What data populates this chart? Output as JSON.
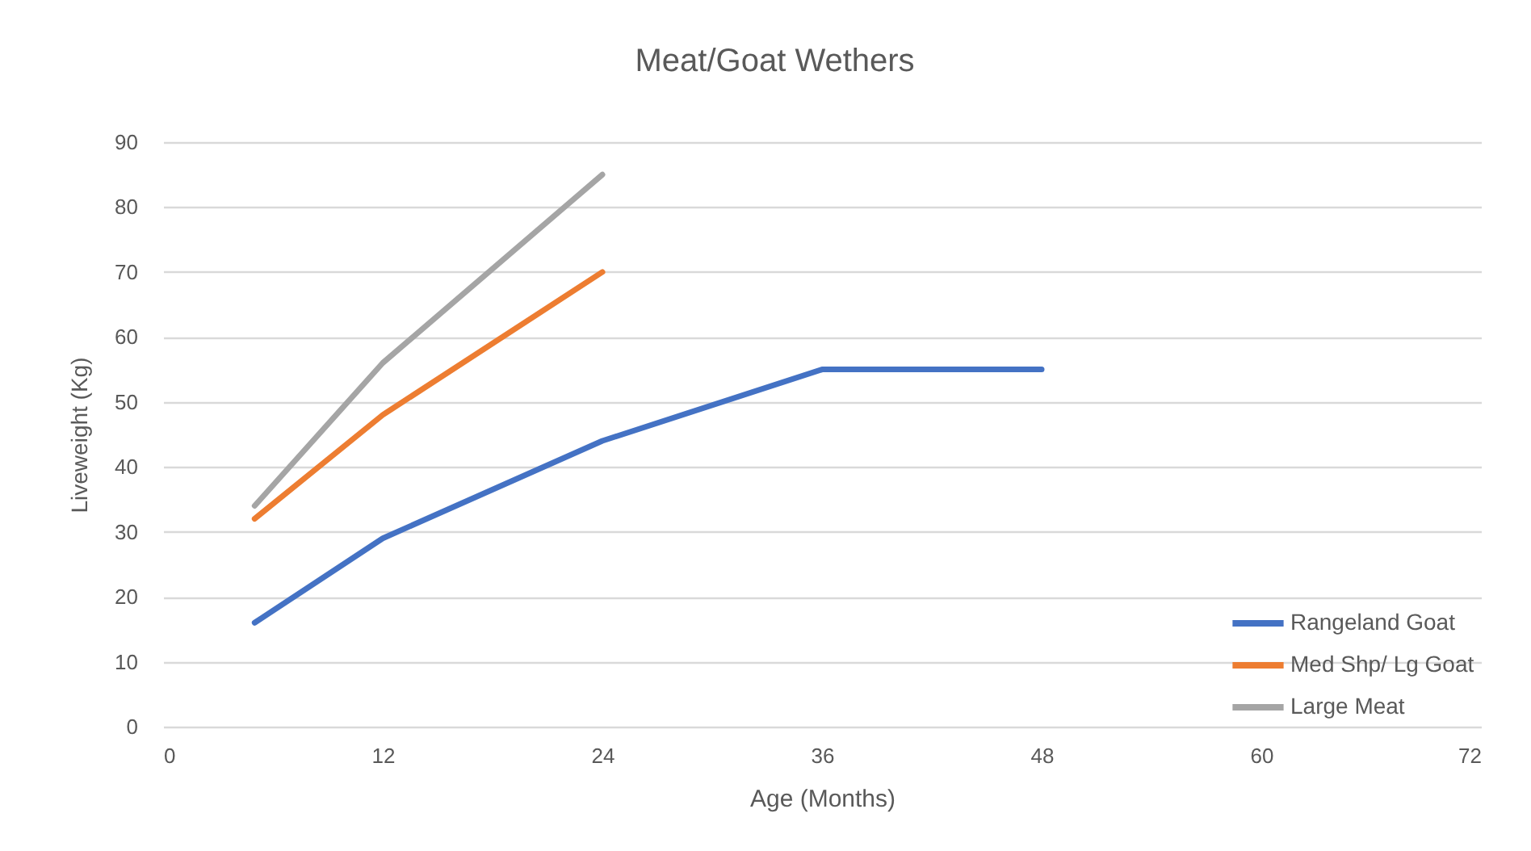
{
  "chart_data": {
    "type": "line",
    "title": "Meat/Goat Wethers",
    "xlabel": "Age (Months)",
    "ylabel": "Liveweight (Kg)",
    "series": [
      {
        "name": "Rangeland Goat",
        "color": "#4472c4",
        "x": [
          5,
          12,
          24,
          36,
          48
        ],
        "values": [
          16,
          29,
          44,
          55,
          55
        ]
      },
      {
        "name": "Med Shp/ Lg Goat",
        "color": "#ed7d31",
        "x": [
          5,
          12,
          24
        ],
        "values": [
          32,
          48,
          70
        ]
      },
      {
        "name": "Large Meat",
        "color": "#a5a5a5",
        "x": [
          5,
          12,
          24
        ],
        "values": [
          34,
          56,
          85
        ]
      }
    ],
    "xlim": [
      0,
      72
    ],
    "xticks": [
      0,
      12,
      24,
      36,
      48,
      60,
      72
    ],
    "ylim": [
      0,
      90
    ],
    "yticks": [
      0,
      10,
      20,
      30,
      40,
      50,
      60,
      70,
      80,
      90
    ],
    "grid": "y",
    "legend": "bottom right",
    "marker": "none",
    "line_style": "solid"
  }
}
